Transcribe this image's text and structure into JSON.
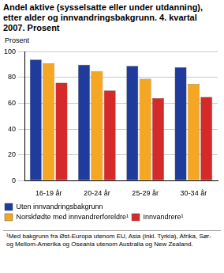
{
  "chart_data": {
    "type": "bar",
    "title": "Andel aktive (sysselsatte eller under utdanning), etter alder og innvandringsbakgrunn. 4. kvartal 2007. Prosent",
    "y_label": "Prosent",
    "categories": [
      "16-19 år",
      "20-24 år",
      "25-29 år",
      "30-34 år"
    ],
    "series": [
      {
        "name": "Uten innvandringsbakgrunn",
        "color": "#1f3b9c",
        "values": [
          94,
          90,
          89,
          88
        ]
      },
      {
        "name": "Norskfødte med innvandrerforeldre¹",
        "color": "#f5a623",
        "values": [
          91,
          85,
          79,
          75
        ]
      },
      {
        "name": "Innvandrere¹",
        "color": "#d42a2a",
        "values": [
          76,
          70,
          64,
          65
        ]
      }
    ],
    "ylim": [
      0,
      100
    ],
    "yticks": [
      0,
      20,
      40,
      60,
      80,
      100
    ],
    "grid": true,
    "legend": "bottom",
    "annotations": [
      "¹Med bakgrunn fra Øst-Europa utenom EU, Asia (inkl. Tyrkia), Afrika, Sør- og Mellom-Amerika og Oseania utenom Australia og New Zealand."
    ]
  }
}
